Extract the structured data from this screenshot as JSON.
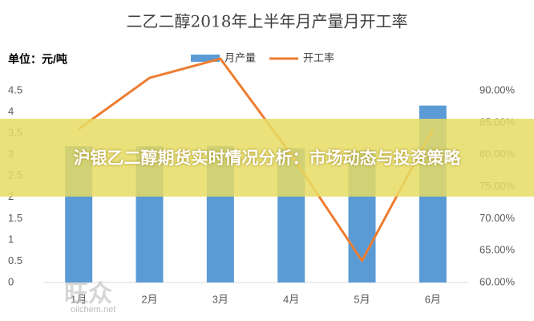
{
  "chart_data": {
    "type": "bar_line",
    "title": "二乙二醇2018年上半年月产量月开工率",
    "unit_label": "单位：元/吨",
    "categories": [
      "1月",
      "2月",
      "3月",
      "4月",
      "5月",
      "6月"
    ],
    "series": [
      {
        "name": "月产量",
        "color": "#5b9bd5",
        "type": "bar",
        "values": [
          3.2,
          3.2,
          3.2,
          3.15,
          3.1,
          4.15
        ]
      },
      {
        "name": "开工率",
        "color": "#ed7d31",
        "type": "line",
        "axis": "y2",
        "values": [
          84,
          92,
          95,
          80,
          63.4,
          84
        ]
      }
    ],
    "ylim": [
      0,
      4.5
    ],
    "yticks": [
      0,
      0.5,
      1,
      1.5,
      2,
      2.5,
      3,
      3.5,
      4,
      4.5
    ],
    "y2lim": [
      60,
      90
    ],
    "y2ticks": [
      {
        "value": 60,
        "label": "60.00%"
      },
      {
        "value": 65,
        "label": "65.00%"
      },
      {
        "value": 70,
        "label": "70.00%"
      },
      {
        "value": 75,
        "label": "75.00%"
      },
      {
        "value": 80,
        "label": "80.00%"
      },
      {
        "value": 85,
        "label": "85.00%"
      },
      {
        "value": 90,
        "label": "90.00%"
      }
    ],
    "grid": false
  },
  "overlay": {
    "headline": "沪银乙二醇期货实时情况分析：市场动态与投资策略",
    "watermark": "旺众",
    "watermark_url": "oilchem.net"
  }
}
